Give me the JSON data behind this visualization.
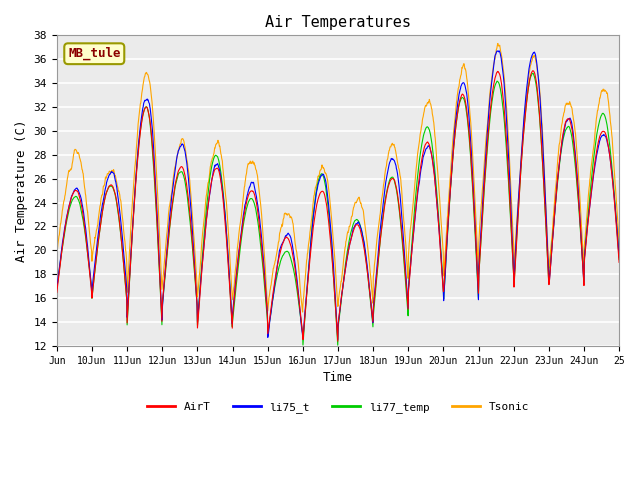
{
  "title": "Air Temperatures",
  "ylabel": "Air Temperature (C)",
  "xlabel": "Time",
  "ylim": [
    12,
    38
  ],
  "xlim": [
    0,
    16
  ],
  "annotation_label": "MB_tule",
  "annotation_color": "#8B0000",
  "annotation_bg": "#FFFFCC",
  "annotation_border": "#999900",
  "xtick_labels": [
    "Jun",
    "10Jun",
    "11Jun",
    "12Jun",
    "13Jun",
    "14Jun",
    "15Jun",
    "16Jun",
    "17Jun",
    "18Jun",
    "19Jun",
    "20Jun",
    "21Jun",
    "22Jun",
    "23Jun",
    "24Jun",
    "25"
  ],
  "series_colors": {
    "AirT": "#FF0000",
    "li75_t": "#0000FF",
    "li77_temp": "#00CC00",
    "Tsonic": "#FFA500"
  },
  "plot_bg": "#EBEBEB",
  "grid_color": "#FFFFFF",
  "font_family": "monospace",
  "day_peaks": [
    25.0,
    25.5,
    32.0,
    27.0,
    27.0,
    25.0,
    21.0,
    25.0,
    22.0,
    26.0,
    29.0,
    33.0,
    35.0,
    35.0,
    31.0,
    30.0
  ],
  "day_mins": [
    16.5,
    16.0,
    14.0,
    15.5,
    13.5,
    14.5,
    13.0,
    12.5,
    14.0,
    15.0,
    16.5,
    16.5,
    18.0,
    17.0,
    17.0,
    19.0
  ]
}
